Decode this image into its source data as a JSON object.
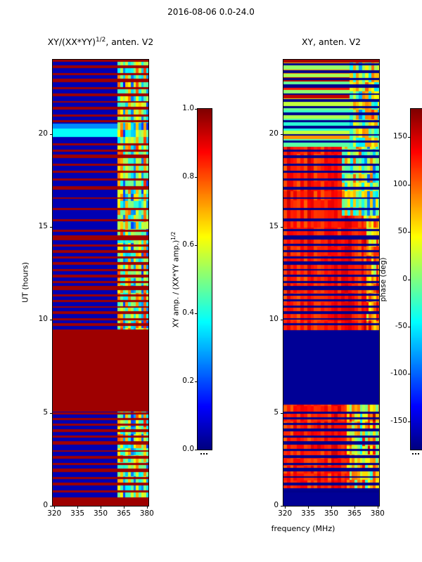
{
  "figure": {
    "title": "2016-08-06 0.0-24.0",
    "xlabel": "frequency (MHz)"
  },
  "left_panel": {
    "title_pre": "XY/(XX*YY)",
    "title_sup": "1/2",
    "title_post": ", anten. V2",
    "ylabel": "UT (hours)",
    "xticks": [
      {
        "v": 320,
        "label": "320"
      },
      {
        "v": 335,
        "label": "335"
      },
      {
        "v": 350,
        "label": "350"
      },
      {
        "v": 365,
        "label": "365"
      },
      {
        "v": 380,
        "label": "380"
      }
    ],
    "yticks": [
      {
        "v": 0,
        "label": "0"
      },
      {
        "v": 5,
        "label": "5"
      },
      {
        "v": 10,
        "label": "10"
      },
      {
        "v": 15,
        "label": "15"
      },
      {
        "v": 20,
        "label": "20"
      }
    ]
  },
  "right_panel": {
    "title": "XY, anten. V2",
    "xticks": [
      {
        "v": 320,
        "label": "320"
      },
      {
        "v": 335,
        "label": "335"
      },
      {
        "v": 350,
        "label": "350"
      },
      {
        "v": 365,
        "label": "365"
      },
      {
        "v": 380,
        "label": "380"
      }
    ],
    "yticks": [
      {
        "v": 0,
        "label": "0"
      },
      {
        "v": 5,
        "label": "5"
      },
      {
        "v": 10,
        "label": "10"
      },
      {
        "v": 15,
        "label": "15"
      },
      {
        "v": 20,
        "label": "20"
      }
    ]
  },
  "left_colorbar": {
    "label_pre": "XY amp. / (XX*YY amp.)",
    "label_sup": "1/2",
    "ticks": [
      {
        "v": 1.0,
        "label": "1.0"
      },
      {
        "v": 0.8,
        "label": "0.8"
      },
      {
        "v": 0.6,
        "label": "0.6"
      },
      {
        "v": 0.4,
        "label": "0.4"
      },
      {
        "v": 0.2,
        "label": "0.2"
      },
      {
        "v": 0.0,
        "label": "0.0"
      }
    ]
  },
  "right_colorbar": {
    "label": "phase (deg)",
    "ticks": [
      {
        "v": 150,
        "label": "150"
      },
      {
        "v": 100,
        "label": "100"
      },
      {
        "v": 50,
        "label": "50"
      },
      {
        "v": 0,
        "label": "0"
      },
      {
        "v": -50,
        "label": "-50"
      },
      {
        "v": -100,
        "label": "-100"
      },
      {
        "v": -150,
        "label": "-150"
      }
    ]
  },
  "chart_data": [
    {
      "type": "heatmap",
      "title": "XY/(XX*YY)^(1/2), anten. V2",
      "xlabel": "frequency (MHz)",
      "ylabel": "UT (hours)",
      "colormap": "jet",
      "x_range": [
        319,
        381
      ],
      "y_range": [
        0,
        24
      ],
      "xticks": [
        320,
        335,
        350,
        365,
        380
      ],
      "yticks": [
        0,
        5,
        10,
        15,
        20
      ],
      "value_range": [
        0,
        1
      ],
      "colorbar_label": "XY amp. / (XX*YY amp.)^(1/2)",
      "colorbar_ticks": [
        0.0,
        0.2,
        0.4,
        0.6,
        0.8,
        1.0
      ],
      "background_value": 0.05,
      "stripe_value": 0.97,
      "regions": [
        {
          "x0": 319,
          "x1": 381,
          "y0": 0,
          "y1": 0.45,
          "v": 0.97
        },
        {
          "x0": 319,
          "x1": 381,
          "y0": 19.85,
          "y1": 20.3,
          "v": 0.38
        },
        {
          "x0": 319,
          "x1": 381,
          "y0": 20.3,
          "y1": 20.55,
          "v": 0.26
        },
        {
          "x0": 361,
          "x1": 381,
          "y0": 0.45,
          "y1": 24,
          "base": 0.12,
          "amp": 0.8,
          "cw": 1.7,
          "ch": 0.38,
          "seed": 11,
          "colfrac": 0.45
        },
        {
          "x0": 319,
          "x1": 381,
          "y0": 5.05,
          "y1": 9.5,
          "v": 0.97
        }
      ],
      "stripes": [
        [
          0.72,
          0.12
        ],
        [
          1.08,
          0.16
        ],
        [
          1.45,
          0.1
        ],
        [
          1.8,
          0.2
        ],
        [
          2.18,
          0.12
        ],
        [
          2.55,
          0.14
        ],
        [
          2.9,
          0.1
        ],
        [
          3.28,
          0.2
        ],
        [
          3.66,
          0.12
        ],
        [
          3.98,
          0.14
        ],
        [
          4.32,
          0.1
        ],
        [
          4.62,
          0.12
        ],
        [
          4.92,
          0.1
        ],
        [
          9.68,
          0.14
        ],
        [
          9.98,
          0.1
        ],
        [
          10.3,
          0.18
        ],
        [
          10.64,
          0.1
        ],
        [
          10.95,
          0.14
        ],
        [
          11.28,
          0.1
        ],
        [
          11.6,
          0.22
        ],
        [
          11.98,
          0.1
        ],
        [
          12.3,
          0.14
        ],
        [
          12.62,
          0.1
        ],
        [
          12.95,
          0.18
        ],
        [
          13.3,
          0.1
        ],
        [
          13.62,
          0.14
        ],
        [
          13.95,
          0.1
        ],
        [
          14.3,
          0.26
        ],
        [
          14.75,
          0.1
        ],
        [
          15.3,
          0.12
        ],
        [
          15.9,
          0.14
        ],
        [
          16.5,
          0.1
        ],
        [
          17.0,
          0.18
        ],
        [
          17.5,
          0.1
        ],
        [
          17.9,
          0.14
        ],
        [
          18.3,
          0.1
        ],
        [
          18.7,
          0.18
        ],
        [
          19.05,
          0.1
        ],
        [
          19.4,
          0.12
        ],
        [
          20.62,
          0.14
        ],
        [
          20.95,
          0.1
        ],
        [
          21.3,
          0.18
        ],
        [
          21.68,
          0.1
        ],
        [
          22.05,
          0.14
        ],
        [
          22.42,
          0.1
        ],
        [
          22.8,
          0.18
        ],
        [
          23.18,
          0.12
        ],
        [
          23.55,
          0.14
        ],
        [
          23.88,
          0.12
        ]
      ]
    },
    {
      "type": "heatmap",
      "title": "XY, anten. V2",
      "xlabel": "frequency (MHz)",
      "ylabel": "UT (hours)",
      "colormap": "jet",
      "x_range": [
        319,
        381
      ],
      "y_range": [
        0,
        24
      ],
      "xticks": [
        320,
        335,
        350,
        365,
        380
      ],
      "yticks": [
        0,
        5,
        10,
        15,
        20
      ],
      "value_range": [
        -180,
        180
      ],
      "colorbar_label": "phase (deg)",
      "colorbar_ticks": [
        -150,
        -100,
        -50,
        0,
        50,
        100,
        150
      ],
      "background_value": -172,
      "stripe_value": -176,
      "regions": [
        {
          "x0": 319,
          "x1": 381,
          "y0": 0.95,
          "y1": 5.45,
          "base": 95,
          "amp": 65,
          "cw": 2.2,
          "ch": 0.4,
          "seed": 21,
          "colfrac": 0.5
        },
        {
          "x0": 360,
          "x1": 381,
          "y0": 0.95,
          "y1": 5.45,
          "base": -60,
          "amp": 230,
          "cw": 1.7,
          "ch": 0.45,
          "seed": 22,
          "colfrac": 0.35
        },
        {
          "x0": 319,
          "x1": 381,
          "y0": 5.45,
          "y1": 9.45,
          "v": -172
        },
        {
          "x0": 319,
          "x1": 381,
          "y0": 9.45,
          "y1": 19.3,
          "base": 98,
          "amp": 62,
          "cw": 2.2,
          "ch": 0.5,
          "seed": 23,
          "colfrac": 0.55
        },
        {
          "x0": 371,
          "x1": 381,
          "y0": 9.45,
          "y1": 15.6,
          "base": -20,
          "amp": 190,
          "cw": 1.6,
          "ch": 0.5,
          "seed": 24,
          "colfrac": 0.3
        },
        {
          "x0": 357,
          "x1": 381,
          "y0": 15.6,
          "y1": 19.3,
          "base": -120,
          "amp": 240,
          "cw": 1.8,
          "ch": 0.45,
          "seed": 25,
          "colfrac": 0.35
        },
        {
          "x0": 319,
          "x1": 381,
          "y0": 19.3,
          "y1": 24,
          "base": -60,
          "amp": 240,
          "cw": 90,
          "ch": 0.22,
          "seed": 26,
          "colfrac": 0
        },
        {
          "x0": 362,
          "x1": 381,
          "y0": 19.3,
          "y1": 24,
          "base": -100,
          "amp": 260,
          "cw": 2.0,
          "ch": 0.5,
          "seed": 27,
          "colfrac": 0.4
        },
        {
          "x0": 319,
          "x1": 381,
          "y0": 23.85,
          "y1": 24,
          "v": 165
        }
      ],
      "stripes": [
        [
          0.72,
          0.12
        ],
        [
          1.1,
          0.14
        ],
        [
          1.5,
          0.1
        ],
        [
          1.85,
          0.18
        ],
        [
          2.2,
          0.1
        ],
        [
          2.58,
          0.14
        ],
        [
          2.95,
          0.1
        ],
        [
          3.3,
          0.18
        ],
        [
          3.68,
          0.1
        ],
        [
          4.0,
          0.14
        ],
        [
          4.35,
          0.1
        ],
        [
          4.65,
          0.12
        ],
        [
          4.95,
          0.1
        ],
        [
          9.7,
          0.12
        ],
        [
          10.0,
          0.1
        ],
        [
          10.32,
          0.16
        ],
        [
          10.66,
          0.1
        ],
        [
          10.98,
          0.12
        ],
        [
          11.3,
          0.1
        ],
        [
          11.62,
          0.2
        ],
        [
          12.0,
          0.1
        ],
        [
          12.32,
          0.12
        ],
        [
          12.65,
          0.1
        ],
        [
          12.98,
          0.16
        ],
        [
          13.32,
          0.1
        ],
        [
          13.65,
          0.12
        ],
        [
          13.98,
          0.1
        ],
        [
          14.32,
          0.22
        ],
        [
          14.78,
          0.1
        ],
        [
          15.32,
          0.12
        ],
        [
          15.9,
          0.12
        ],
        [
          16.5,
          0.1
        ],
        [
          17.0,
          0.16
        ],
        [
          17.5,
          0.1
        ],
        [
          17.9,
          0.12
        ],
        [
          18.3,
          0.1
        ],
        [
          18.7,
          0.16
        ],
        [
          19.06,
          0.1
        ],
        [
          19.55,
          0.12
        ],
        [
          19.9,
          0.1
        ],
        [
          20.3,
          0.14
        ],
        [
          20.65,
          0.1
        ],
        [
          21.0,
          0.16
        ],
        [
          21.4,
          0.1
        ],
        [
          21.75,
          0.14
        ],
        [
          22.1,
          0.1
        ],
        [
          22.5,
          0.16
        ],
        [
          22.9,
          0.1
        ],
        [
          23.3,
          0.14
        ],
        [
          23.7,
          0.1
        ]
      ]
    }
  ]
}
